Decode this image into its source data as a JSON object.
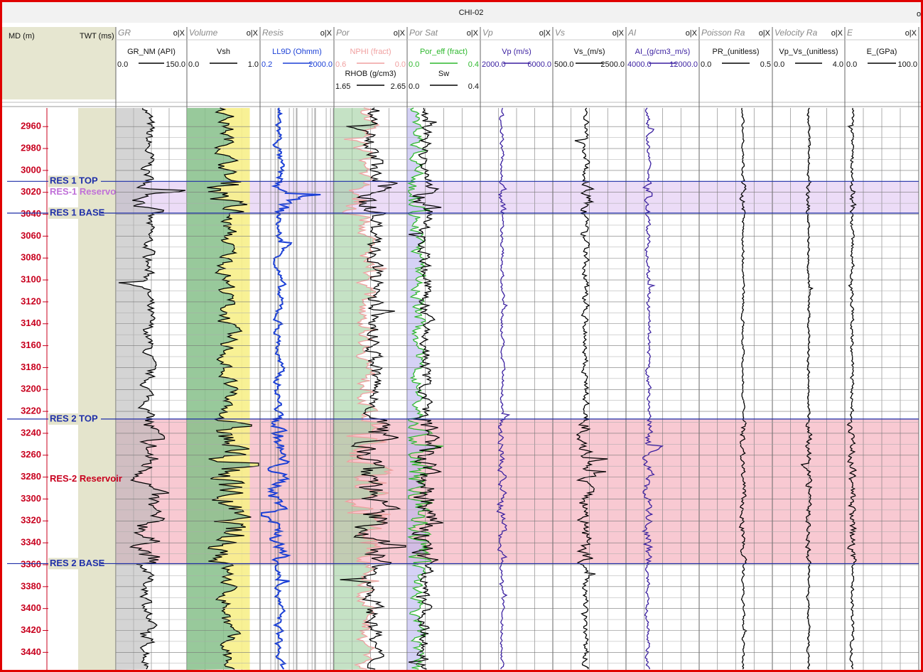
{
  "window": {
    "title": "CHI-02"
  },
  "depth_header": {
    "md": "MD (m)",
    "twt": "TWT (ms)"
  },
  "depth_axis": {
    "ylim": [
      2943,
      3456
    ],
    "ticks": [
      2960,
      2980,
      3000,
      3020,
      3040,
      3060,
      3080,
      3100,
      3120,
      3140,
      3160,
      3180,
      3200,
      3220,
      3240,
      3260,
      3280,
      3300,
      3320,
      3340,
      3360,
      3380,
      3400,
      3420,
      3440
    ]
  },
  "tracks": [
    {
      "name": "GR",
      "curves": [
        {
          "label": "GR_NM (API)",
          "min": "0.0",
          "max": "150.0",
          "color": "#000000"
        }
      ]
    },
    {
      "name": "Volume",
      "curves": [
        {
          "label": "Vsh",
          "min": "0.0",
          "max": "1.0",
          "color": "#000000"
        }
      ]
    },
    {
      "name": "Resis",
      "curves": [
        {
          "label": "LL9D (Ohmm)",
          "min": "0.2",
          "max": "2000.0",
          "color": "#1a3fd6"
        }
      ]
    },
    {
      "name": "Por",
      "curves": [
        {
          "label": "NPHI (fract)",
          "min": "0.6",
          "max": "0.0",
          "color": "#f0a0a0"
        },
        {
          "label": "RHOB (g/cm3)",
          "min": "1.65",
          "max": "2.65",
          "color": "#000000"
        }
      ]
    },
    {
      "name": "Por Sat",
      "curves": [
        {
          "label": "Por_eff (fract)",
          "min": "0.0",
          "max": "0.4",
          "color": "#2fb82f"
        },
        {
          "label": "Sw",
          "min": "0.0",
          "max": "0.4",
          "color": "#000000"
        }
      ]
    },
    {
      "name": "Vp",
      "curves": [
        {
          "label": "Vp (m/s)",
          "min": "2000.0",
          "max": "6000.0",
          "color": "#3a1fa0"
        }
      ]
    },
    {
      "name": "Vs",
      "curves": [
        {
          "label": "Vs_(m/s)",
          "min": "500.0",
          "max": "2500.0",
          "color": "#000000"
        }
      ]
    },
    {
      "name": "AI",
      "curves": [
        {
          "label": "AI_(g/cm3_m/s)",
          "min": "4000.0",
          "max": "12000.0",
          "color": "#3a1fa0"
        }
      ]
    },
    {
      "name": "Poisson Ra",
      "curves": [
        {
          "label": "PR_(unitless)",
          "min": "0.0",
          "max": "0.5",
          "color": "#000000"
        }
      ]
    },
    {
      "name": "Velocity Ra",
      "curves": [
        {
          "label": "Vp_Vs_(unitless)",
          "min": "0.0",
          "max": "4.0",
          "color": "#000000"
        }
      ]
    },
    {
      "name": "E",
      "curves": [
        {
          "label": "E_(GPa)",
          "min": "0.0",
          "max": "100.0",
          "color": "#000000"
        }
      ]
    }
  ],
  "track_controls": "o|X",
  "markers": [
    {
      "label": "RES 1 TOP",
      "depth": 3010
    },
    {
      "label": "RES 1 BASE",
      "depth": 3039
    },
    {
      "label": "RES 2 TOP",
      "depth": 3227
    },
    {
      "label": "RES 2 BASE",
      "depth": 3359
    }
  ],
  "zones": [
    {
      "label": "RES-1 Reservo",
      "top": 3010,
      "base": 3039,
      "label_depth": 3020,
      "color": "#ecdcf7",
      "label_color": "#c070d8"
    },
    {
      "label": "RES-2 Reservoir",
      "top": 3227,
      "base": 3359,
      "label_depth": 3282,
      "color": "#f8c9d2",
      "label_color": "#c8001e"
    }
  ]
}
